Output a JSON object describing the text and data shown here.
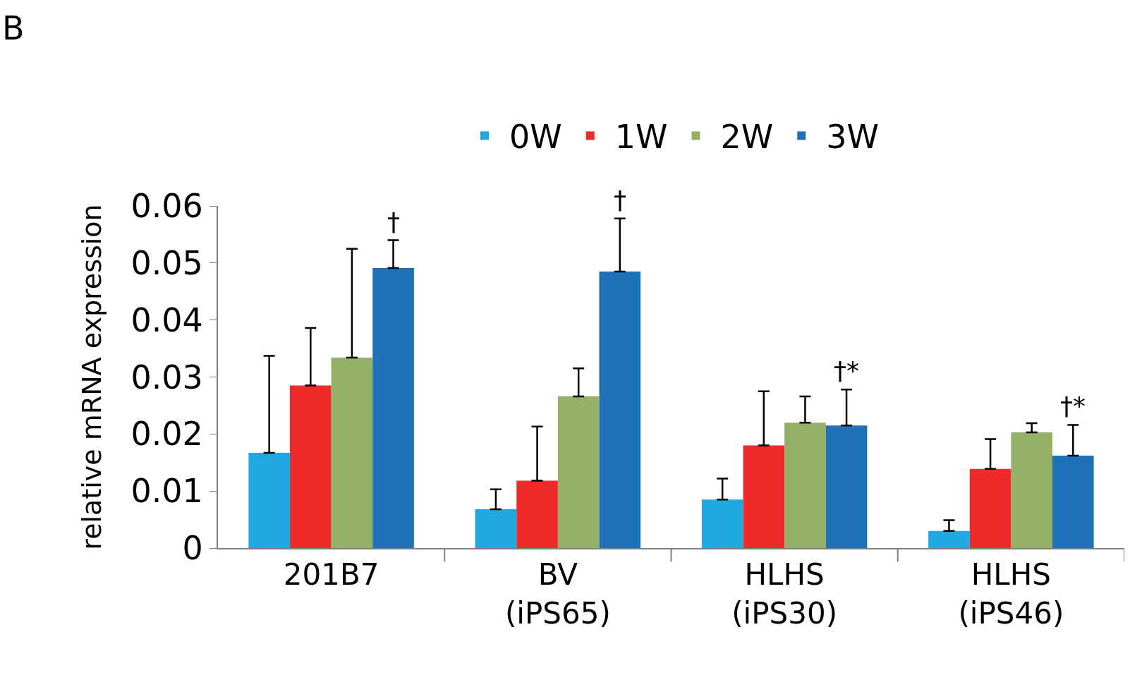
{
  "chart_data": {
    "type": "bar",
    "ylabel": "relative mRNA expression",
    "categories": [
      "201B7",
      "BV\n(iPS65)",
      "HLHS\n(iPS30)",
      "HLHS\n(iPS46)"
    ],
    "series": [
      {
        "name": "0W",
        "color": "#20a8e0",
        "values": [
          0.0167,
          0.0068,
          0.0085,
          0.003
        ],
        "errors": [
          [
            0.0167,
            0.0337
          ],
          [
            0.0068,
            0.0103
          ],
          [
            0.0085,
            0.0122
          ],
          [
            0.003,
            0.0049
          ]
        ]
      },
      {
        "name": "1W",
        "color": "#ee2a2a",
        "values": [
          0.0285,
          0.0118,
          0.018,
          0.0139
        ],
        "errors": [
          [
            0.0285,
            0.0386
          ],
          [
            0.0118,
            0.0213
          ],
          [
            0.018,
            0.0275
          ],
          [
            0.0139,
            0.0191
          ]
        ]
      },
      {
        "name": "2W",
        "color": "#93b066",
        "values": [
          0.0334,
          0.0266,
          0.022,
          0.0203
        ],
        "errors": [
          [
            0.0334,
            0.0525
          ],
          [
            0.0266,
            0.0315
          ],
          [
            0.022,
            0.0266
          ],
          [
            0.0203,
            0.0219
          ]
        ]
      },
      {
        "name": "3W",
        "color": "#1f71b8",
        "values": [
          0.0491,
          0.0485,
          0.0215,
          0.0162
        ],
        "errors": [
          [
            0.0491,
            0.054
          ],
          [
            0.0485,
            0.0578
          ],
          [
            0.0215,
            0.0278
          ],
          [
            0.0162,
            0.0216
          ]
        ]
      }
    ],
    "ylim": [
      0,
      0.06
    ],
    "yticks": [
      0,
      0.01,
      0.02,
      0.03,
      0.04,
      0.05,
      0.06
    ],
    "legend": "top",
    "annotations": [
      "B",
      "†",
      "†",
      "†*",
      "†*"
    ]
  }
}
